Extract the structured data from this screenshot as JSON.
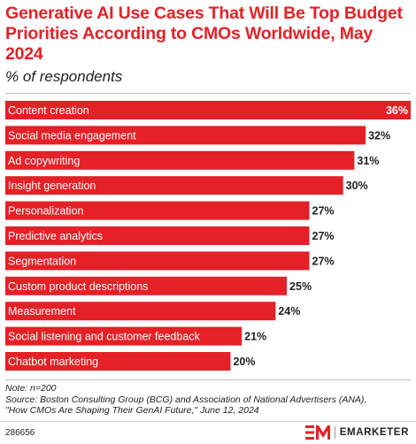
{
  "header": {
    "title": "Generative AI Use Cases That Will Be Top Budget Priorities According to CMOs Worldwide, May 2024",
    "subtitle": "% of respondents"
  },
  "chart_data": {
    "type": "bar",
    "orientation": "horizontal",
    "categories": [
      "Content creation",
      "Social media engagement",
      "Ad copywriting",
      "Insight generation",
      "Personalization",
      "Predictive analytics",
      "Segmentation",
      "Custom product descriptions",
      "Measurement",
      "Social listening and customer feedback",
      "Chatbot marketing"
    ],
    "values": [
      36,
      32,
      31,
      30,
      27,
      27,
      27,
      25,
      24,
      21,
      20
    ],
    "value_labels": [
      "36%",
      "32%",
      "31%",
      "30%",
      "27%",
      "27%",
      "27%",
      "25%",
      "24%",
      "21%",
      "20%"
    ],
    "unit": "%",
    "xlim": [
      0,
      36
    ],
    "grid": false,
    "legend": "none",
    "bar_color": "#e42127"
  },
  "footer": {
    "note": "Note: n=200",
    "source_line1": "Source: Boston Consulting Group (BCG) and Association of National Advertisers (ANA),",
    "source_line2": "\"How CMOs Are Shaping Their GenAI Future,\" June 12, 2024",
    "chart_id": "286656",
    "brand": "EMARKETER",
    "brand_icon": "em-logo-icon",
    "accent_color": "#e42127"
  }
}
